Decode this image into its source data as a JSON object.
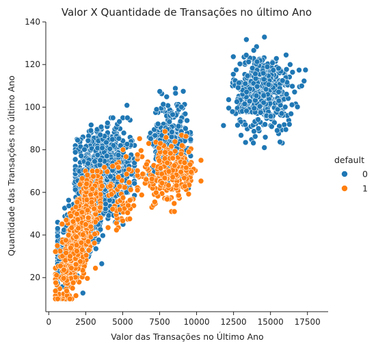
{
  "chart_data": {
    "type": "scatter",
    "title": "Valor X Quantidade de Transações no último Ano",
    "xlabel": "Valor das Transações no Último Ano",
    "ylabel": "Quantidade das Transações no último Ano",
    "xlim": [
      -200,
      18900
    ],
    "ylim": [
      4,
      140
    ],
    "xticks": [
      0,
      2500,
      5000,
      7500,
      10000,
      12500,
      15000,
      17500
    ],
    "yticks": [
      20,
      40,
      60,
      80,
      100,
      120,
      140
    ],
    "legend": {
      "title": "default",
      "placement": "right",
      "entries": [
        "0",
        "1"
      ]
    },
    "grid": false,
    "colors": {
      "0": "#1f77b4",
      "1": "#ff7f0e"
    },
    "clusters": [
      {
        "series": "0",
        "count": 520,
        "cx": 2300,
        "sx": 1400,
        "cy": 45,
        "sy": 10,
        "sr": 12,
        "xmin": 600,
        "xmax": 5500,
        "ymin": 10,
        "ymax": 95,
        "rel": "linear",
        "slope": 0.012,
        "intercept": 18
      },
      {
        "series": "0",
        "count": 900,
        "cx": 3800,
        "sx": 900,
        "cy": 70,
        "sy": 9,
        "xmin": 1800,
        "xmax": 5800,
        "ymin": 45,
        "ymax": 103
      },
      {
        "series": "0",
        "count": 330,
        "cx": 8200,
        "sx": 600,
        "cy": 85,
        "sy": 9,
        "xmin": 6800,
        "xmax": 9600,
        "ymin": 62,
        "ymax": 122
      },
      {
        "series": "0",
        "count": 480,
        "cx": 14500,
        "sx": 1000,
        "cy": 107,
        "sy": 9,
        "xmin": 11500,
        "xmax": 17800,
        "ymin": 81,
        "ymax": 134
      },
      {
        "series": "1",
        "count": 700,
        "cx": 2000,
        "sx": 700,
        "cy": 38,
        "sy": 9,
        "xmin": 450,
        "xmax": 3500,
        "ymin": 10,
        "ymax": 70,
        "rel": "linear",
        "slope": 0.014,
        "intercept": 11
      },
      {
        "series": "1",
        "count": 60,
        "cx": 4800,
        "sx": 600,
        "cy": 57,
        "sy": 8,
        "xmin": 3600,
        "xmax": 6600,
        "ymin": 40,
        "ymax": 80
      },
      {
        "series": "1",
        "count": 230,
        "cx": 8100,
        "sx": 1000,
        "cy": 69,
        "sy": 7,
        "xmin": 6000,
        "xmax": 10300,
        "ymin": 51,
        "ymax": 91
      }
    ]
  }
}
